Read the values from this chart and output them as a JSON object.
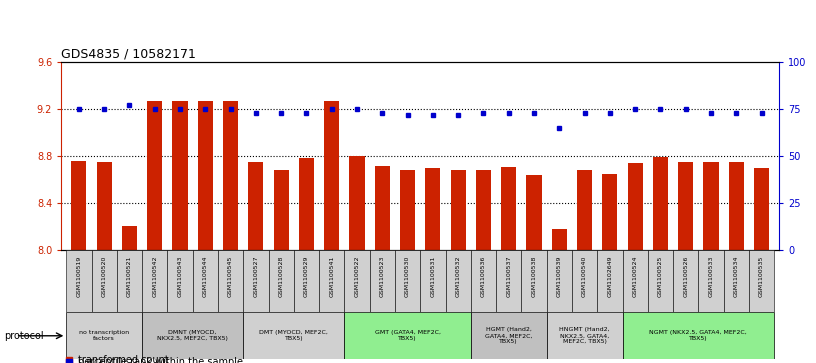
{
  "title": "GDS4835 / 10582171",
  "samples": [
    "GSM1100519",
    "GSM1100520",
    "GSM1100521",
    "GSM1100542",
    "GSM1100543",
    "GSM1100544",
    "GSM1100545",
    "GSM1100527",
    "GSM1100528",
    "GSM1100529",
    "GSM1100541",
    "GSM1100522",
    "GSM1100523",
    "GSM1100530",
    "GSM1100531",
    "GSM1100532",
    "GSM1100536",
    "GSM1100537",
    "GSM1100538",
    "GSM1100539",
    "GSM1100540",
    "GSM1102649",
    "GSM1100524",
    "GSM1100525",
    "GSM1100526",
    "GSM1100533",
    "GSM1100534",
    "GSM1100535"
  ],
  "bar_values": [
    8.76,
    8.75,
    8.21,
    9.27,
    9.27,
    9.27,
    9.27,
    8.75,
    8.68,
    8.78,
    9.27,
    8.8,
    8.72,
    8.68,
    8.7,
    8.68,
    8.68,
    8.71,
    8.64,
    8.18,
    8.68,
    8.65,
    8.74,
    8.79,
    8.75,
    8.75,
    8.75,
    8.7
  ],
  "percentile_values": [
    75,
    75,
    77,
    75,
    75,
    75,
    75,
    73,
    73,
    73,
    75,
    75,
    73,
    72,
    72,
    72,
    73,
    73,
    73,
    65,
    73,
    73,
    75,
    75,
    75,
    73,
    73,
    73
  ],
  "ylim_left": [
    8.0,
    9.6
  ],
  "ylim_right": [
    0,
    100
  ],
  "yticks_left": [
    8.0,
    8.4,
    8.8,
    9.2,
    9.6
  ],
  "yticks_right": [
    0,
    25,
    50,
    75,
    100
  ],
  "bar_color": "#cc2200",
  "dot_color": "#0000cc",
  "bg_color": "#ffffff",
  "protocol_groups": [
    {
      "label": "no transcription\nfactors",
      "start": 0,
      "end": 3,
      "color": "#d0d0d0"
    },
    {
      "label": "DMNT (MYOCD,\nNKX2.5, MEF2C, TBX5)",
      "start": 3,
      "end": 7,
      "color": "#c0c0c0"
    },
    {
      "label": "DMT (MYOCD, MEF2C,\nTBX5)",
      "start": 7,
      "end": 11,
      "color": "#d0d0d0"
    },
    {
      "label": "GMT (GATA4, MEF2C,\nTBX5)",
      "start": 11,
      "end": 16,
      "color": "#90ee90"
    },
    {
      "label": "HGMT (Hand2,\nGATA4, MEF2C,\nTBX5)",
      "start": 16,
      "end": 19,
      "color": "#c0c0c0"
    },
    {
      "label": "HNGMT (Hand2,\nNKX2.5, GATA4,\nMEF2C, TBX5)",
      "start": 19,
      "end": 22,
      "color": "#d0d0d0"
    },
    {
      "label": "NGMT (NKX2.5, GATA4, MEF2C,\nTBX5)",
      "start": 22,
      "end": 28,
      "color": "#90ee90"
    }
  ]
}
